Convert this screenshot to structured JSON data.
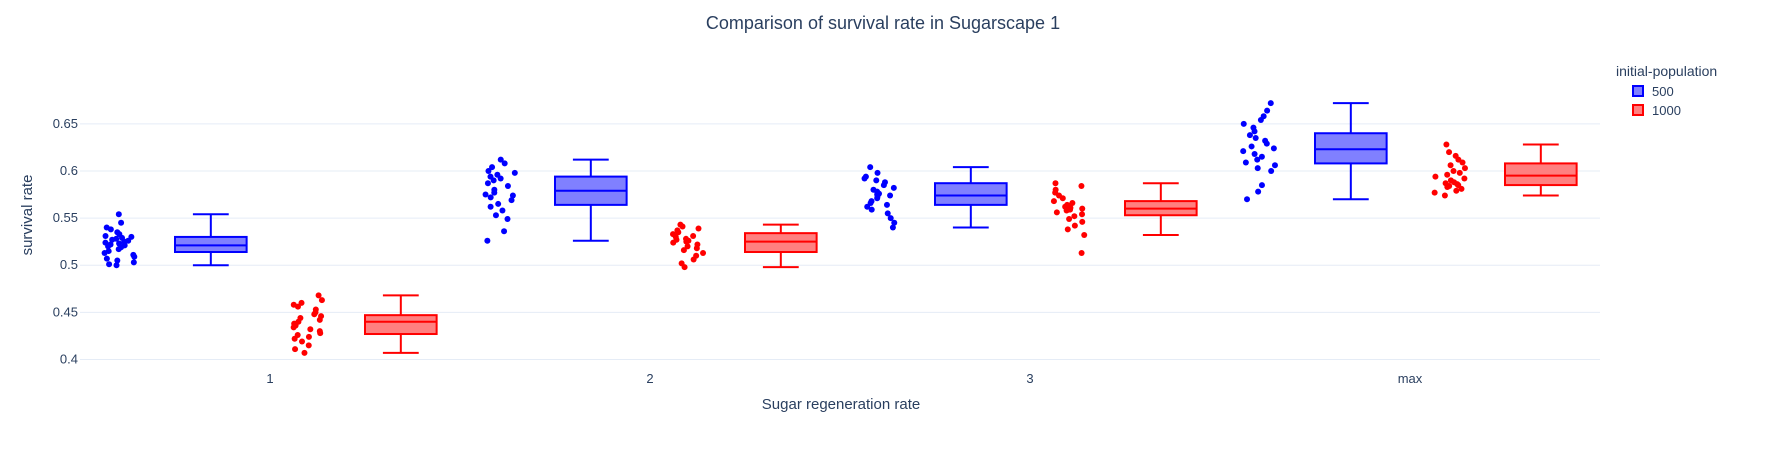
{
  "chart_data": {
    "type": "box",
    "title": "Comparison of survival rate in Sugarscape 1",
    "xlabel": "Sugar regeneration rate",
    "ylabel": "survival rate",
    "categories": [
      "1",
      "2",
      "3",
      "max"
    ],
    "ylim": [
      0.392,
      0.688
    ],
    "yticks": [
      0.4,
      0.45,
      0.5,
      0.55,
      0.6,
      0.65
    ],
    "ytick_labels": [
      "0.4",
      "0.45",
      "0.5",
      "0.55",
      "0.6",
      "0.65"
    ],
    "grid": true,
    "legend": {
      "title": "initial-population",
      "position": "top-right"
    },
    "series": [
      {
        "name": "500",
        "color": "#0000ff",
        "fill": "#8080ff",
        "boxes": [
          {
            "min": 0.5,
            "q1": 0.514,
            "median": 0.521,
            "q3": 0.53,
            "max": 0.554,
            "points": [
              0.554,
              0.545,
              0.54,
              0.538,
              0.535,
              0.533,
              0.531,
              0.53,
              0.529,
              0.528,
              0.527,
              0.526,
              0.525,
              0.524,
              0.523,
              0.522,
              0.521,
              0.52,
              0.519,
              0.517,
              0.515,
              0.513,
              0.511,
              0.509,
              0.507,
              0.505,
              0.503,
              0.501,
              0.5
            ]
          },
          {
            "min": 0.526,
            "q1": 0.564,
            "median": 0.579,
            "q3": 0.594,
            "max": 0.612,
            "points": [
              0.612,
              0.608,
              0.604,
              0.6,
              0.598,
              0.596,
              0.594,
              0.592,
              0.59,
              0.587,
              0.584,
              0.58,
              0.577,
              0.575,
              0.574,
              0.572,
              0.569,
              0.565,
              0.562,
              0.558,
              0.553,
              0.549,
              0.536,
              0.526
            ]
          },
          {
            "min": 0.54,
            "q1": 0.564,
            "median": 0.574,
            "q3": 0.587,
            "max": 0.604,
            "points": [
              0.604,
              0.598,
              0.594,
              0.592,
              0.59,
              0.588,
              0.585,
              0.582,
              0.58,
              0.578,
              0.576,
              0.575,
              0.574,
              0.573,
              0.571,
              0.568,
              0.566,
              0.564,
              0.562,
              0.559,
              0.555,
              0.55,
              0.545,
              0.54
            ]
          },
          {
            "min": 0.57,
            "q1": 0.608,
            "median": 0.623,
            "q3": 0.64,
            "max": 0.672,
            "points": [
              0.672,
              0.664,
              0.658,
              0.654,
              0.65,
              0.646,
              0.642,
              0.638,
              0.635,
              0.632,
              0.629,
              0.626,
              0.624,
              0.621,
              0.618,
              0.615,
              0.612,
              0.609,
              0.606,
              0.603,
              0.6,
              0.585,
              0.578,
              0.57
            ]
          }
        ]
      },
      {
        "name": "1000",
        "color": "#ff0000",
        "fill": "#ff8080",
        "boxes": [
          {
            "min": 0.407,
            "q1": 0.427,
            "median": 0.44,
            "q3": 0.447,
            "max": 0.468,
            "points": [
              0.468,
              0.463,
              0.46,
              0.458,
              0.456,
              0.453,
              0.45,
              0.448,
              0.446,
              0.444,
              0.442,
              0.44,
              0.438,
              0.436,
              0.434,
              0.432,
              0.43,
              0.428,
              0.426,
              0.424,
              0.422,
              0.419,
              0.415,
              0.411,
              0.407
            ]
          },
          {
            "min": 0.498,
            "q1": 0.514,
            "median": 0.525,
            "q3": 0.534,
            "max": 0.543,
            "points": [
              0.543,
              0.541,
              0.539,
              0.537,
              0.535,
              0.533,
              0.531,
              0.53,
              0.528,
              0.527,
              0.526,
              0.525,
              0.524,
              0.522,
              0.52,
              0.518,
              0.516,
              0.513,
              0.51,
              0.506,
              0.502,
              0.498
            ]
          },
          {
            "min": 0.532,
            "q1": 0.553,
            "median": 0.56,
            "q3": 0.568,
            "max": 0.587,
            "points": [
              0.587,
              0.584,
              0.58,
              0.577,
              0.574,
              0.571,
              0.568,
              0.566,
              0.564,
              0.562,
              0.561,
              0.56,
              0.559,
              0.558,
              0.556,
              0.554,
              0.552,
              0.549,
              0.546,
              0.542,
              0.538,
              0.532,
              0.513
            ]
          },
          {
            "min": 0.574,
            "q1": 0.585,
            "median": 0.595,
            "q3": 0.608,
            "max": 0.628,
            "points": [
              0.628,
              0.62,
              0.616,
              0.612,
              0.609,
              0.606,
              0.603,
              0.6,
              0.598,
              0.596,
              0.594,
              0.592,
              0.59,
              0.588,
              0.587,
              0.586,
              0.585,
              0.584,
              0.583,
              0.581,
              0.579,
              0.577,
              0.574
            ]
          }
        ]
      }
    ]
  }
}
